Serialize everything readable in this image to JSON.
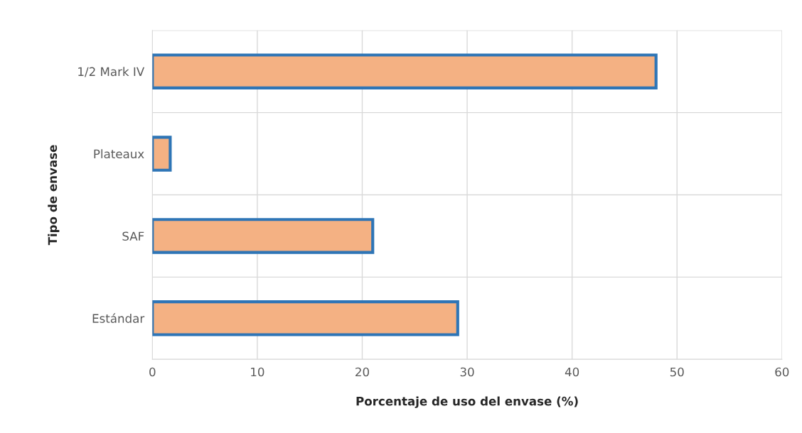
{
  "chart_data": {
    "type": "bar",
    "orientation": "horizontal",
    "categories": [
      "1/2 Mark IV",
      "Plateaux",
      "SAF",
      "Estándar"
    ],
    "values": [
      48,
      1.7,
      21,
      29.1
    ],
    "color": "#f4b183",
    "xlabel": "Porcentaje de uso del envase (%)",
    "ylabel": "Tipo de envase",
    "xlim": [
      0,
      60
    ],
    "xticks": [
      0,
      10,
      20,
      30,
      40,
      50,
      60
    ],
    "grid": true
  }
}
